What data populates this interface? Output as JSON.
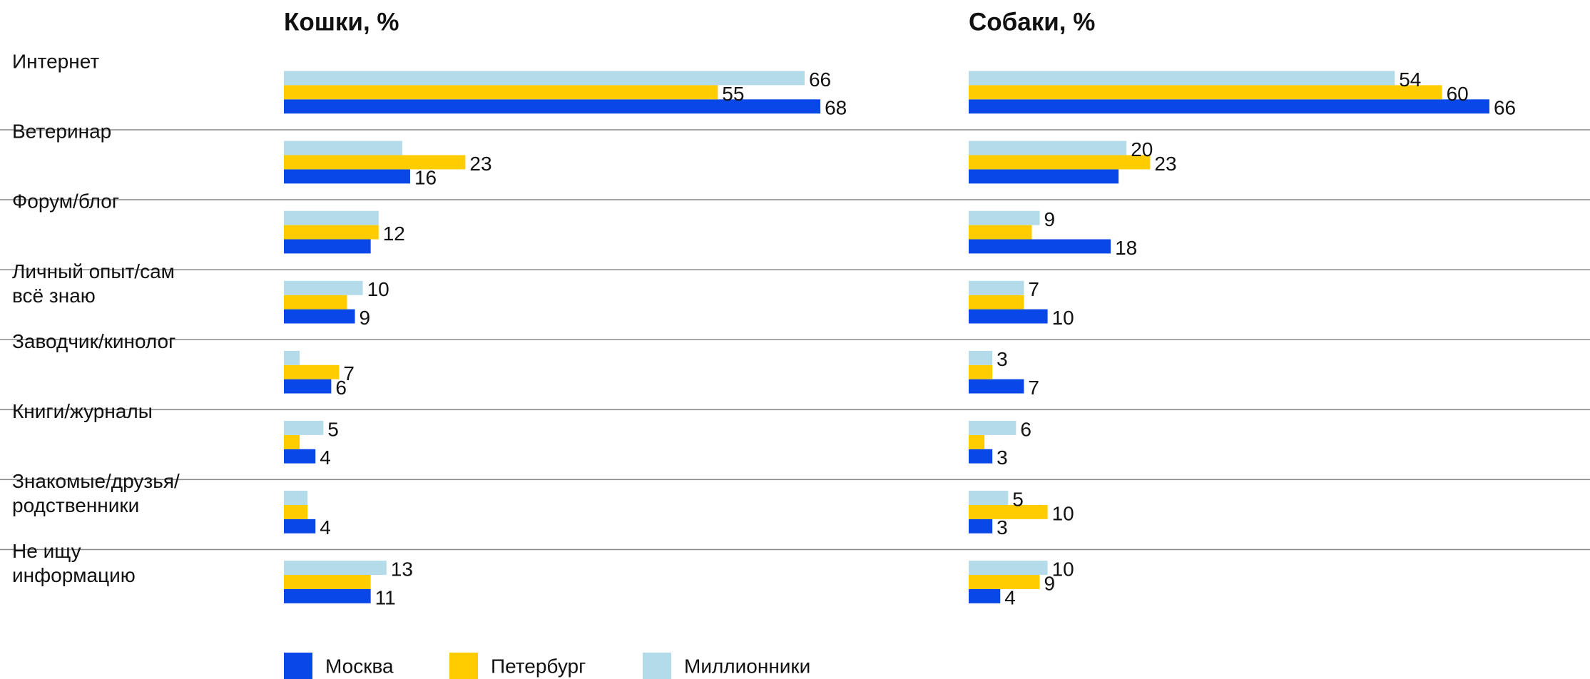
{
  "chart_data": {
    "type": "bar",
    "orientation": "horizontal",
    "categories": [
      [
        "Интернет"
      ],
      [
        "Ветеринар"
      ],
      [
        "Форум/блог"
      ],
      [
        "Личный опыт/сам",
        "всё знаю"
      ],
      [
        "Заводчик/кинолог"
      ],
      [
        "Книги/журналы"
      ],
      [
        "Знакомые/друзья/",
        "родственники"
      ],
      [
        "Не ищу",
        "информацию"
      ]
    ],
    "series": [
      {
        "name": "Москва",
        "color": "#0a47e8"
      },
      {
        "name": "Петербург",
        "color": "#ffcc00"
      },
      {
        "name": "Миллионники",
        "color": "#b3dbe9"
      }
    ],
    "panels": [
      {
        "title": "Кошки, %",
        "series": [
          {
            "values": [
              68,
              16,
              11,
              9,
              6,
              4,
              4,
              11
            ],
            "value_labels": [
              "68",
              "16",
              null,
              "9",
              "6",
              "4",
              "4",
              "11"
            ]
          },
          {
            "values": [
              55,
              23,
              12,
              8,
              7,
              2,
              3,
              11
            ],
            "value_labels": [
              "55",
              "23",
              "12",
              null,
              "7",
              null,
              null,
              null
            ]
          },
          {
            "values": [
              66,
              15,
              12,
              10,
              2,
              5,
              3,
              13
            ],
            "value_labels": [
              "66",
              null,
              null,
              "10",
              null,
              "5",
              null,
              "13"
            ]
          }
        ]
      },
      {
        "title": "Собаки, %",
        "series": [
          {
            "values": [
              66,
              19,
              18,
              10,
              7,
              3,
              3,
              4
            ],
            "value_labels": [
              "66",
              null,
              "18",
              "10",
              "7",
              "3",
              "3",
              "4"
            ]
          },
          {
            "values": [
              60,
              23,
              8,
              7,
              3,
              2,
              10,
              9
            ],
            "value_labels": [
              "60",
              "23",
              null,
              null,
              null,
              null,
              "10",
              "9"
            ]
          },
          {
            "values": [
              54,
              20,
              9,
              7,
              3,
              6,
              5,
              10
            ],
            "value_labels": [
              "54",
              "20",
              "9",
              "7",
              "3",
              "6",
              "5",
              "10"
            ]
          }
        ]
      }
    ]
  }
}
